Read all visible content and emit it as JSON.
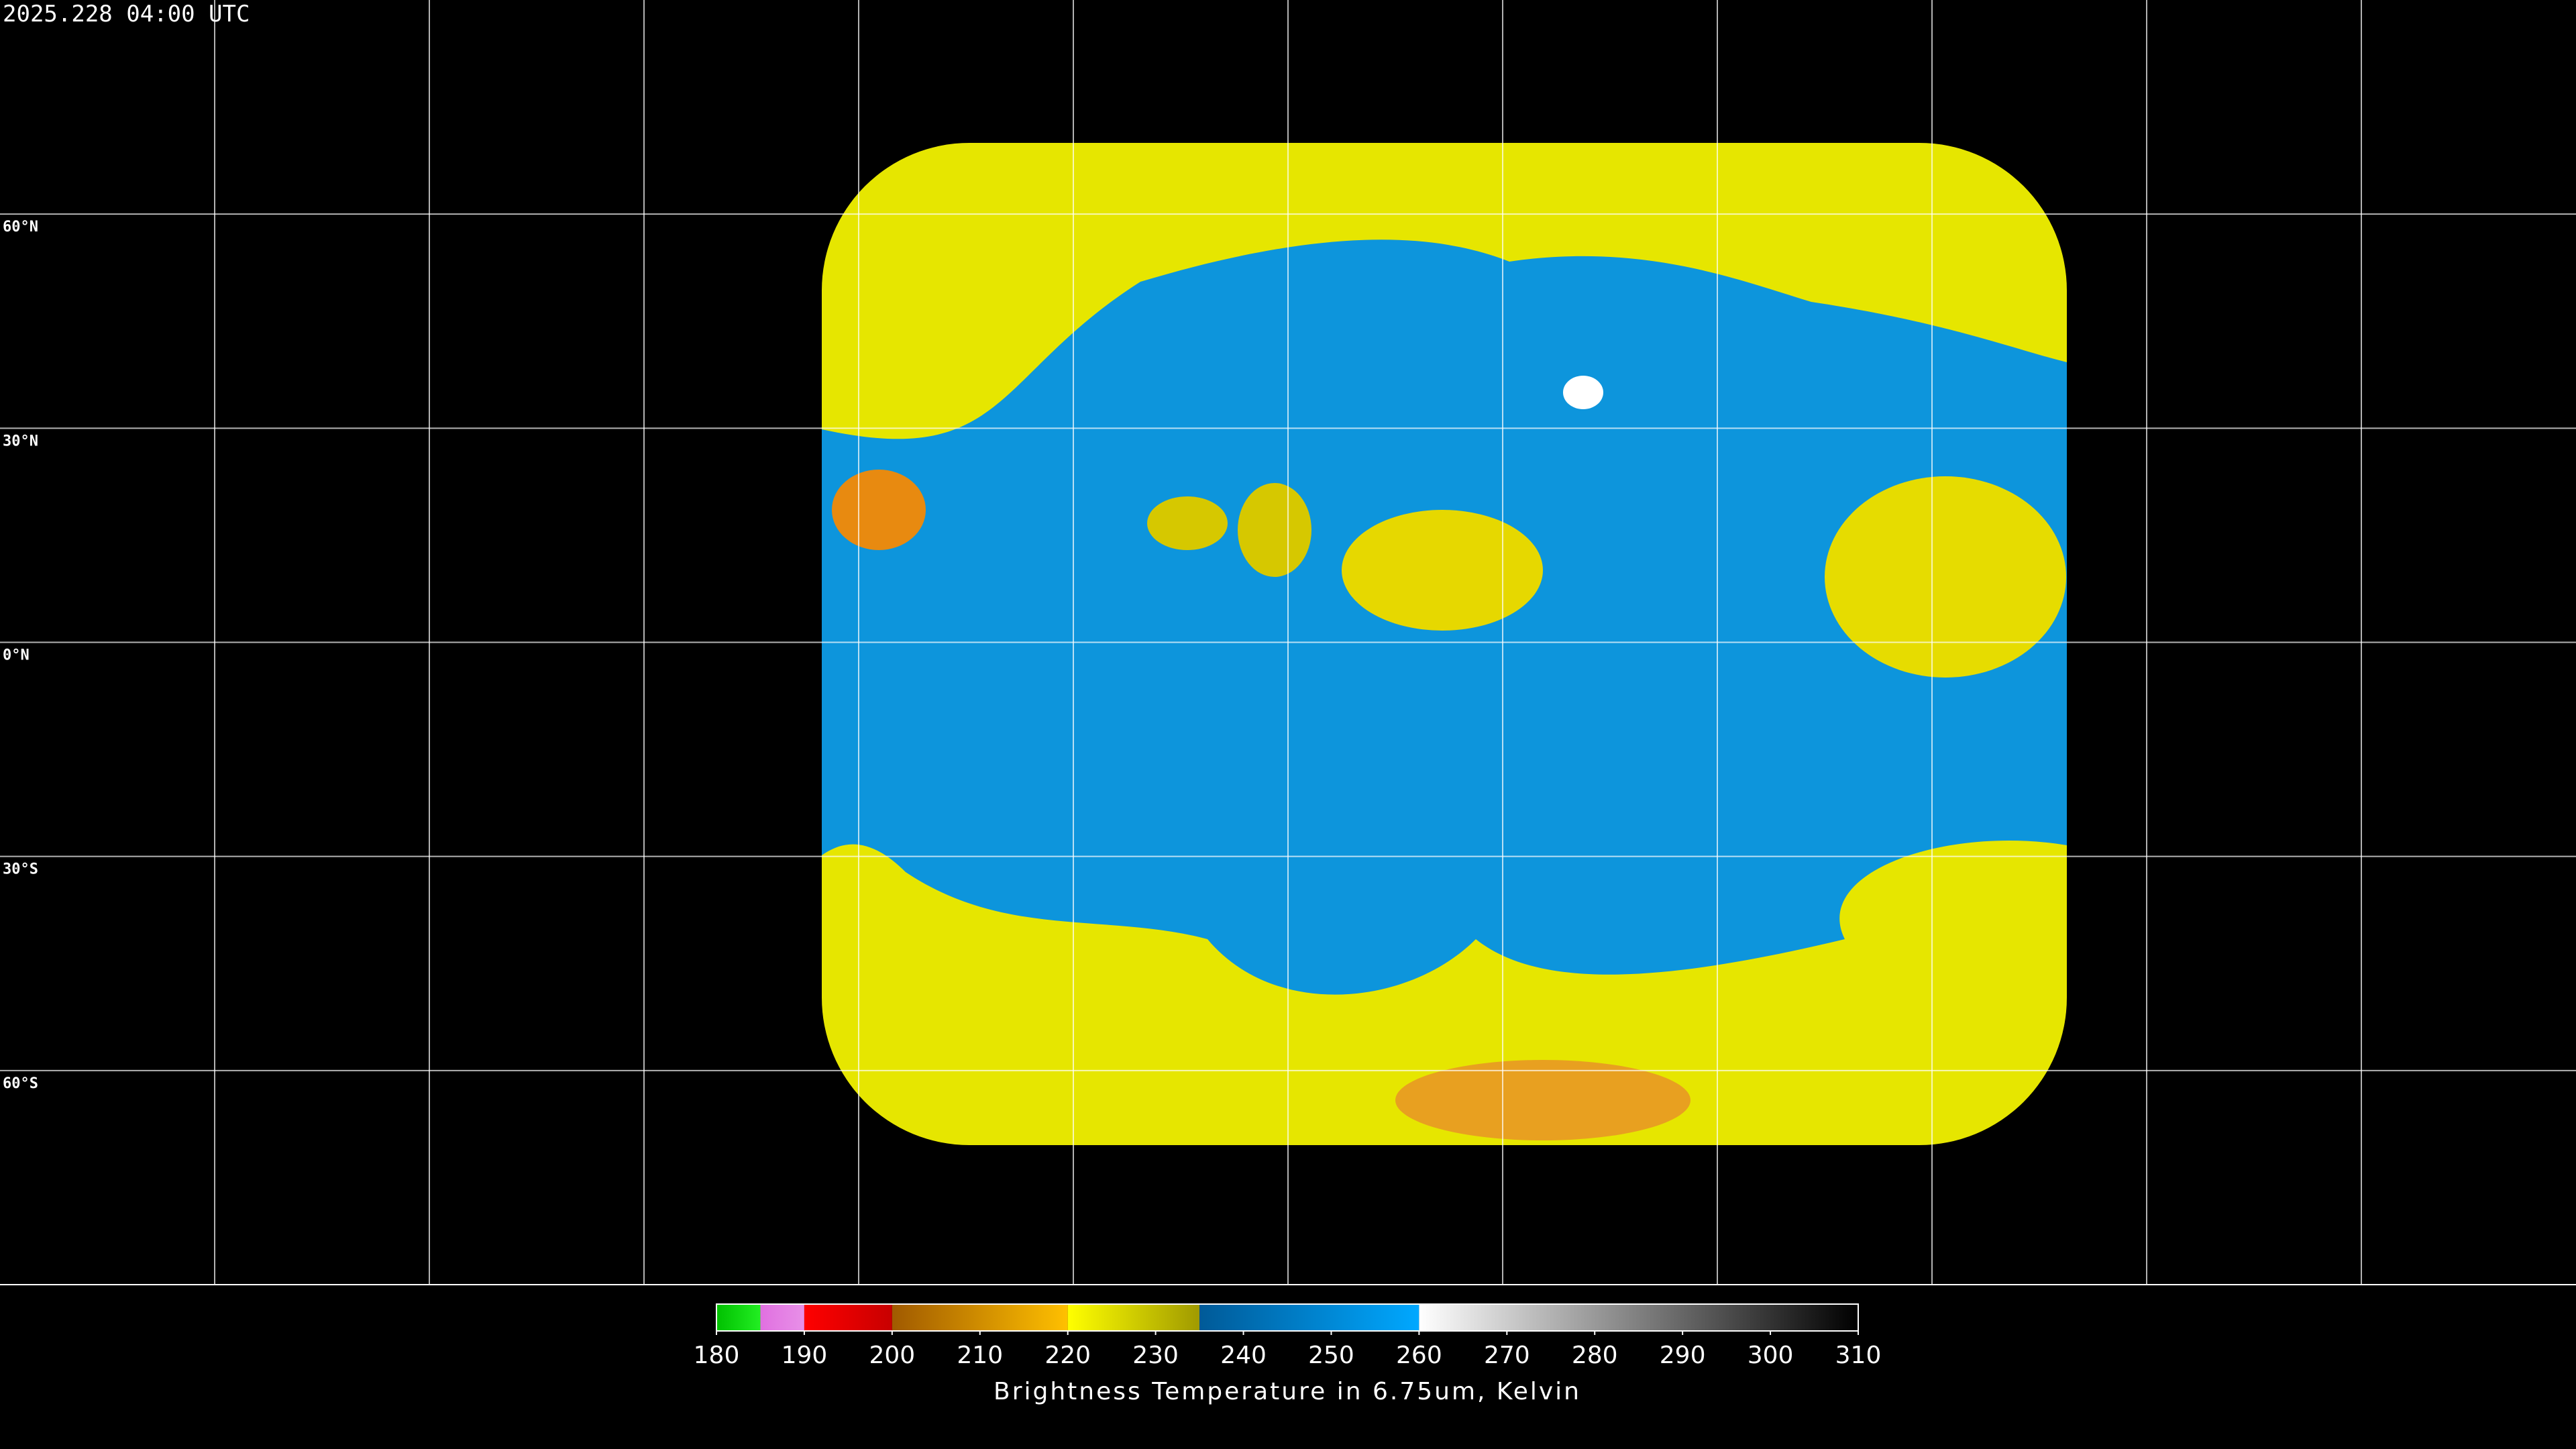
{
  "header": {
    "timestamp": "2025.228 04:00 UTC"
  },
  "map": {
    "lat_labels": [
      "60°N",
      "30°N",
      "0°N",
      "30°S",
      "60°S"
    ]
  },
  "colorbar": {
    "range": [
      180,
      310
    ],
    "ticks": [
      180,
      190,
      200,
      210,
      220,
      230,
      240,
      250,
      260,
      270,
      280,
      290,
      300,
      310
    ],
    "label": "Brightness Temperature in 6.75um, Kelvin",
    "segments": [
      {
        "from": 180,
        "to": 185,
        "colors": [
          "#00c000",
          "#22ee22"
        ]
      },
      {
        "from": 185,
        "to": 190,
        "colors": [
          "#e070e0",
          "#e890e8"
        ]
      },
      {
        "from": 190,
        "to": 200,
        "colors": [
          "#ff0000",
          "#c80000"
        ]
      },
      {
        "from": 200,
        "to": 220,
        "colors": [
          "#a05a00",
          "#ffc000"
        ]
      },
      {
        "from": 220,
        "to": 235,
        "colors": [
          "#ffff00",
          "#a09a00"
        ]
      },
      {
        "from": 235,
        "to": 260,
        "colors": [
          "#005a98",
          "#00a8ff"
        ]
      },
      {
        "from": 260,
        "to": 310,
        "colors": [
          "#ffffff",
          "#000000"
        ]
      }
    ]
  }
}
